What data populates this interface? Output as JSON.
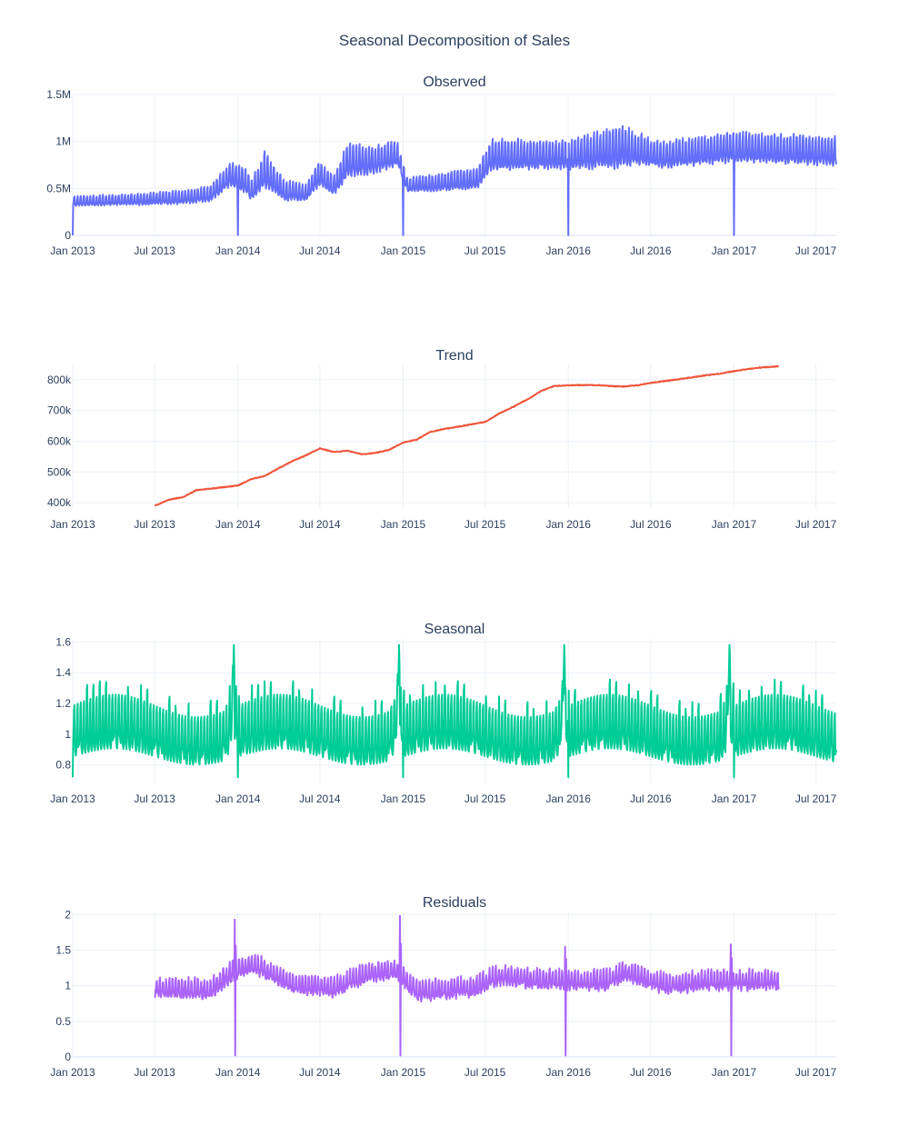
{
  "chart_data": {
    "type": "line",
    "title": "Seasonal Decomposition of Sales",
    "x_range": [
      "2013-01-01",
      "2017-08-15"
    ],
    "x_ticks": [
      "Jan 2013",
      "Jul 2013",
      "Jan 2014",
      "Jul 2014",
      "Jan 2015",
      "Jul 2015",
      "Jan 2016",
      "Jul 2016",
      "Jan 2017",
      "Jul 2017"
    ],
    "x_tick_dates": [
      "2013-01-01",
      "2013-07-01",
      "2014-01-01",
      "2014-07-01",
      "2015-01-01",
      "2015-07-01",
      "2016-01-01",
      "2016-07-01",
      "2017-01-01",
      "2017-07-01"
    ],
    "grid": true,
    "legend": "none",
    "subplots": [
      {
        "name": "Observed",
        "title": "Observed",
        "color": "#636efa",
        "y_range": [
          0,
          1500000
        ],
        "y_ticks": [
          {
            "value": 0,
            "label": "0"
          },
          {
            "value": 500000,
            "label": "0.5M"
          },
          {
            "value": 1000000,
            "label": "1M"
          },
          {
            "value": 1500000,
            "label": "1.5M"
          }
        ],
        "level_points": [
          [
            "2013-01-01",
            350000
          ],
          [
            "2013-06-01",
            370000
          ],
          [
            "2013-09-01",
            390000
          ],
          [
            "2013-11-01",
            420000
          ],
          [
            "2013-12-15",
            620000
          ],
          [
            "2014-01-15",
            560000
          ],
          [
            "2014-02-01",
            450000
          ],
          [
            "2014-03-01",
            650000
          ],
          [
            "2014-04-15",
            450000
          ],
          [
            "2014-06-01",
            430000
          ],
          [
            "2014-07-01",
            630000
          ],
          [
            "2014-08-01",
            500000
          ],
          [
            "2014-09-01",
            760000
          ],
          [
            "2014-11-01",
            770000
          ],
          [
            "2014-12-20",
            840000
          ],
          [
            "2015-01-10",
            520000
          ],
          [
            "2015-04-01",
            540000
          ],
          [
            "2015-06-15",
            590000
          ],
          [
            "2015-07-15",
            820000
          ],
          [
            "2016-01-01",
            820000
          ],
          [
            "2016-04-01",
            870000
          ],
          [
            "2016-05-01",
            900000
          ],
          [
            "2016-08-01",
            820000
          ],
          [
            "2016-11-01",
            870000
          ],
          [
            "2017-01-01",
            900000
          ],
          [
            "2017-08-15",
            860000
          ]
        ],
        "amplitude_points": [
          [
            "2013-01-01",
            0.2
          ],
          [
            "2013-12-01",
            0.28
          ],
          [
            "2014-03-01",
            0.4
          ],
          [
            "2014-06-01",
            0.28
          ],
          [
            "2014-09-01",
            0.33
          ],
          [
            "2015-01-01",
            0.2
          ],
          [
            "2015-07-01",
            0.28
          ],
          [
            "2016-01-01",
            0.26
          ],
          [
            "2016-04-15",
            0.35
          ],
          [
            "2016-07-01",
            0.24
          ],
          [
            "2017-08-15",
            0.25
          ]
        ],
        "annual_dips": [
          "2014-01-01",
          "2015-01-01",
          "2016-01-01",
          "2017-01-01"
        ]
      },
      {
        "name": "Trend",
        "title": "Trend",
        "color": "#ef553b",
        "y_range": [
          380000,
          850000
        ],
        "y_ticks": [
          {
            "value": 400000,
            "label": "400k"
          },
          {
            "value": 500000,
            "label": "500k"
          },
          {
            "value": 600000,
            "label": "600k"
          },
          {
            "value": 700000,
            "label": "700k"
          },
          {
            "value": 800000,
            "label": "800k"
          }
        ],
        "points": [
          [
            "2013-07-01",
            390000
          ],
          [
            "2013-08-01",
            410000
          ],
          [
            "2013-09-01",
            418000
          ],
          [
            "2013-10-01",
            441000
          ],
          [
            "2013-11-01",
            446000
          ],
          [
            "2013-12-01",
            451000
          ],
          [
            "2014-01-01",
            456000
          ],
          [
            "2014-02-01",
            478000
          ],
          [
            "2014-03-01",
            487000
          ],
          [
            "2014-04-01",
            512000
          ],
          [
            "2014-05-01",
            535000
          ],
          [
            "2014-06-01",
            555000
          ],
          [
            "2014-07-01",
            577000
          ],
          [
            "2014-08-01",
            565000
          ],
          [
            "2014-09-01",
            569000
          ],
          [
            "2014-10-01",
            558000
          ],
          [
            "2014-11-01",
            562000
          ],
          [
            "2014-12-01",
            572000
          ],
          [
            "2015-01-01",
            596000
          ],
          [
            "2015-02-01",
            606000
          ],
          [
            "2015-03-01",
            630000
          ],
          [
            "2015-04-01",
            640000
          ],
          [
            "2015-05-01",
            647000
          ],
          [
            "2015-06-01",
            655000
          ],
          [
            "2015-07-01",
            663000
          ],
          [
            "2015-08-01",
            690000
          ],
          [
            "2015-09-01",
            712000
          ],
          [
            "2015-10-01",
            735000
          ],
          [
            "2015-11-01",
            763000
          ],
          [
            "2015-12-01",
            780000
          ],
          [
            "2016-01-01",
            782000
          ],
          [
            "2016-02-01",
            783000
          ],
          [
            "2016-03-01",
            783000
          ],
          [
            "2016-04-01",
            780000
          ],
          [
            "2016-05-01",
            778000
          ],
          [
            "2016-06-01",
            782000
          ],
          [
            "2016-07-01",
            790000
          ],
          [
            "2016-08-01",
            796000
          ],
          [
            "2016-09-01",
            802000
          ],
          [
            "2016-10-01",
            808000
          ],
          [
            "2016-11-01",
            815000
          ],
          [
            "2016-12-01",
            820000
          ],
          [
            "2017-01-01",
            828000
          ],
          [
            "2017-02-01",
            835000
          ],
          [
            "2017-03-01",
            840000
          ],
          [
            "2017-04-10",
            844000
          ]
        ]
      },
      {
        "name": "Seasonal",
        "title": "Seasonal",
        "color": "#00cc96",
        "y_range": [
          0.68,
          1.62
        ],
        "y_ticks": [
          {
            "value": 0.8,
            "label": "0.8"
          },
          {
            "value": 1,
            "label": "1"
          },
          {
            "value": 1.2,
            "label": "1.2"
          },
          {
            "value": 1.4,
            "label": "1.4"
          },
          {
            "value": 1.6,
            "label": "1.6"
          }
        ],
        "peak": 1.58,
        "trough": 0.72,
        "period_days": 365,
        "annual_peaks": [
          "2013-12-23",
          "2014-12-23",
          "2015-12-23",
          "2016-12-23"
        ]
      },
      {
        "name": "Residuals",
        "title": "Residuals",
        "color": "#ab63fa",
        "y_range": [
          0,
          2.03
        ],
        "y_ticks": [
          {
            "value": 0,
            "label": "0"
          },
          {
            "value": 0.5,
            "label": "0.5"
          },
          {
            "value": 1,
            "label": "1"
          },
          {
            "value": 1.5,
            "label": "1.5"
          },
          {
            "value": 2,
            "label": "2"
          }
        ],
        "start": "2013-07-01",
        "end": "2017-04-10",
        "level_points": [
          [
            "2013-07-01",
            0.95
          ],
          [
            "2013-11-01",
            0.92
          ],
          [
            "2013-12-15",
            1.15
          ],
          [
            "2014-02-01",
            1.3
          ],
          [
            "2014-05-01",
            1.0
          ],
          [
            "2014-08-01",
            0.95
          ],
          [
            "2014-10-01",
            1.12
          ],
          [
            "2014-12-15",
            1.2
          ],
          [
            "2015-02-01",
            0.9
          ],
          [
            "2015-06-01",
            0.95
          ],
          [
            "2015-08-01",
            1.12
          ],
          [
            "2015-12-01",
            1.05
          ],
          [
            "2016-04-01",
            1.05
          ],
          [
            "2016-05-01",
            1.18
          ],
          [
            "2016-08-01",
            1.0
          ],
          [
            "2016-12-01",
            1.05
          ],
          [
            "2017-04-10",
            1.05
          ]
        ],
        "amplitude": 0.22,
        "spikes": [
          {
            "date": "2013-12-26",
            "high": 1.93,
            "low": 0.02
          },
          {
            "date": "2014-12-26",
            "high": 1.98,
            "low": 0.02
          },
          {
            "date": "2015-12-26",
            "high": 1.55,
            "low": 0.02
          },
          {
            "date": "2016-12-26",
            "high": 1.58,
            "low": 0.02
          }
        ]
      }
    ]
  }
}
